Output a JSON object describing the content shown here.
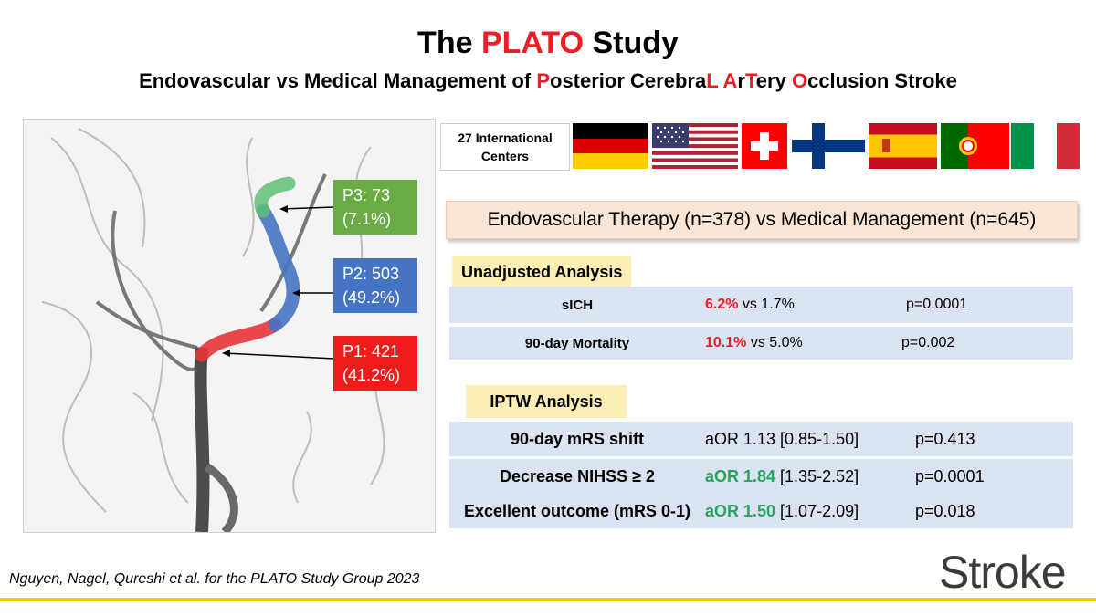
{
  "title": {
    "prefix": "The ",
    "highlight": "PLATO",
    "suffix": " Study"
  },
  "subtitle": {
    "parts": [
      {
        "text": "Endovascular vs Medical Management of ",
        "red": false
      },
      {
        "text": "P",
        "red": true
      },
      {
        "text": "osterior Cerebra",
        "red": false
      },
      {
        "text": "L",
        "red": true
      },
      {
        "text": " ",
        "red": false
      },
      {
        "text": "A",
        "red": true
      },
      {
        "text": "r",
        "red": false
      },
      {
        "text": "T",
        "red": true
      },
      {
        "text": "ery ",
        "red": false
      },
      {
        "text": "O",
        "red": true
      },
      {
        "text": "cclusion Stroke",
        "red": false
      }
    ]
  },
  "segments": [
    {
      "name": "P3",
      "line1": "P3: 73",
      "line2": "(7.1%)",
      "color": "#6aab46"
    },
    {
      "name": "P2",
      "line1": "P2: 503",
      "line2": "(49.2%)",
      "color": "#4574c4"
    },
    {
      "name": "P1",
      "line1": "P1: 421",
      "line2": "(41.2%)",
      "color": "#f01c1c"
    }
  ],
  "centers": {
    "line1": "27 International",
    "line2": "Centers"
  },
  "flags": [
    "germany-flag",
    "usa-flag",
    "switzerland-flag",
    "finland-flag",
    "spain-flag",
    "portugal-flag",
    "italy-flag"
  ],
  "banner": "Endovascular Therapy (n=378) vs Medical Management (n=645)",
  "unadjusted": {
    "label": "Unadjusted Analysis",
    "rows": [
      {
        "label": "sICH",
        "highlight": "6.2%",
        "rest": " vs 1.7%",
        "p": "p=0.0001"
      },
      {
        "label": "90-day Mortality",
        "highlight": "10.1%",
        "rest": " vs 5.0%",
        "p": "p=0.002"
      }
    ]
  },
  "iptw": {
    "label": "IPTW Analysis",
    "rows": [
      {
        "label": "90-day mRS shift",
        "highlight": "",
        "rest": "aOR 1.13 [0.85-1.50]",
        "p": "p=0.413"
      },
      {
        "label": "Decrease NIHSS ≥ 2",
        "highlight": "aOR 1.84",
        "rest": " [1.35-2.52]",
        "p": "p=0.0001"
      },
      {
        "label": "Excellent outcome (mRS 0-1)",
        "highlight": "aOR 1.50",
        "rest": " [1.07-2.09]",
        "p": "p=0.018"
      }
    ]
  },
  "footer": "Nguyen, Nagel, Qureshi et al. for the PLATO Study Group 2023",
  "logo": "Stroke",
  "colors": {
    "accent_red": "#ee1c25",
    "positive_green": "#27a55a",
    "row_blue": "#d9e3f1",
    "label_yellow": "#fdeeb6",
    "footer_line": "#f2d000"
  }
}
